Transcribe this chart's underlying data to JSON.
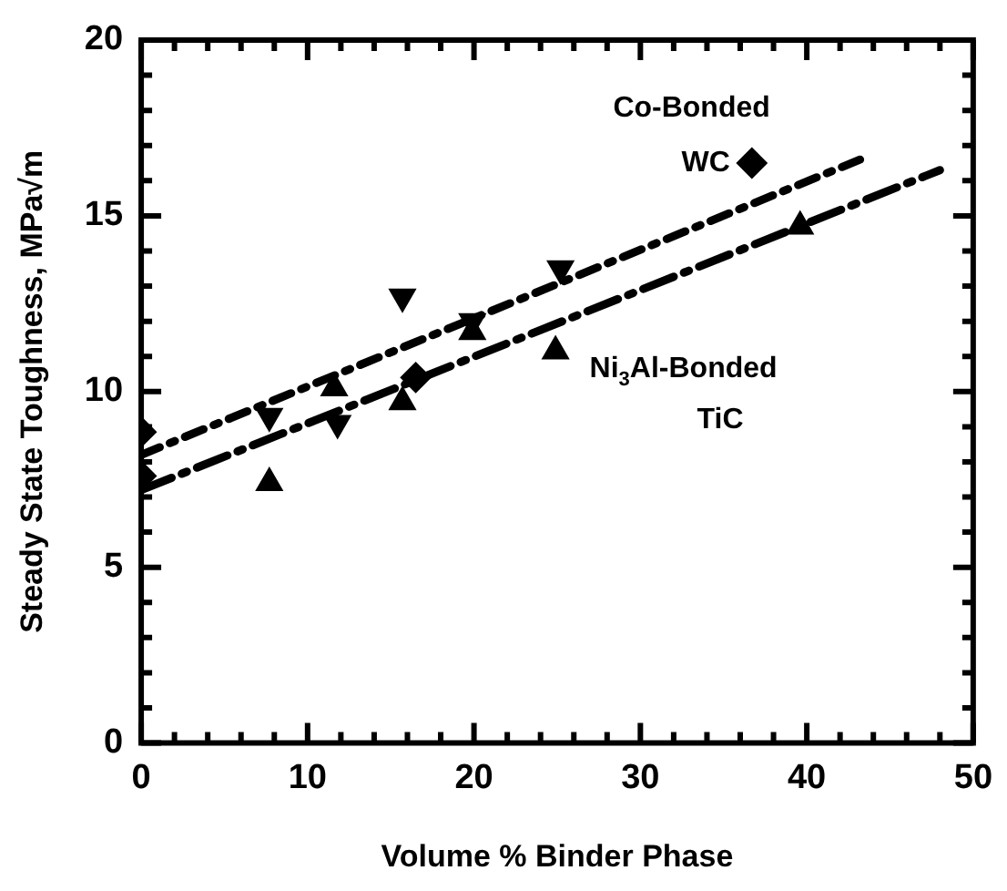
{
  "chart_data": {
    "type": "scatter",
    "xlabel": "Volume % Binder Phase",
    "ylabel": "Steady State Toughness, MPa√m",
    "xlim": [
      0,
      50
    ],
    "ylim": [
      0,
      20
    ],
    "xticks": [
      0,
      {
        "value": 2,
        "label": null
      },
      {
        "value": 4,
        "label": null
      },
      {
        "value": 6,
        "label": null
      },
      {
        "value": 8,
        "label": null
      },
      10,
      {
        "value": 12,
        "label": null
      },
      {
        "value": 14,
        "label": null
      },
      {
        "value": 16,
        "label": null
      },
      {
        "value": 18,
        "label": null
      },
      20,
      {
        "value": 22,
        "label": null
      },
      {
        "value": 24,
        "label": null
      },
      {
        "value": 26,
        "label": null
      },
      {
        "value": 28,
        "label": null
      },
      30,
      {
        "value": 32,
        "label": null
      },
      {
        "value": 34,
        "label": null
      },
      {
        "value": 36,
        "label": null
      },
      {
        "value": 38,
        "label": null
      },
      40,
      {
        "value": 42,
        "label": null
      },
      {
        "value": 44,
        "label": null
      },
      {
        "value": 46,
        "label": null
      },
      {
        "value": 48,
        "label": null
      },
      50
    ],
    "yticks": [
      0,
      {
        "value": 1,
        "label": null
      },
      {
        "value": 2,
        "label": null
      },
      {
        "value": 3,
        "label": null
      },
      {
        "value": 4,
        "label": null
      },
      5,
      {
        "value": 6,
        "label": null
      },
      {
        "value": 7,
        "label": null
      },
      {
        "value": 8,
        "label": null
      },
      {
        "value": 9,
        "label": null
      },
      10,
      {
        "value": 11,
        "label": null
      },
      {
        "value": 12,
        "label": null
      },
      {
        "value": 13,
        "label": null
      },
      {
        "value": 14,
        "label": null
      },
      15,
      {
        "value": 16,
        "label": null
      },
      {
        "value": 17,
        "label": null
      },
      {
        "value": 18,
        "label": null
      },
      {
        "value": 19,
        "label": null
      },
      20
    ],
    "grid": false,
    "legend": false,
    "series": [
      {
        "type": "scatter",
        "marker": "diamond",
        "color": "#000000",
        "x": [
          0,
          0,
          16.5,
          36.7
        ],
        "values": [
          8.85,
          7.6,
          10.4,
          16.5
        ]
      },
      {
        "type": "scatter",
        "marker": "triangle-down",
        "color": "#000000",
        "x": [
          7.7,
          11.8,
          15.7,
          19.9,
          25.2
        ],
        "values": [
          9.3,
          9.1,
          12.7,
          12.0,
          13.5
        ]
      },
      {
        "type": "scatter",
        "marker": "triangle",
        "color": "#000000",
        "x": [
          7.7,
          11.6,
          15.7,
          19.9,
          24.9,
          39.6
        ],
        "values": [
          7.4,
          10.1,
          9.7,
          11.7,
          11.15,
          14.7
        ]
      },
      {
        "type": "line",
        "line_style": "dotted",
        "color": "#000000",
        "x": [
          0,
          43.2
        ],
        "values": [
          8.2,
          16.6
        ]
      },
      {
        "type": "line",
        "line_style": "dashed",
        "color": "#000000",
        "x": [
          0,
          48
        ],
        "values": [
          7.2,
          16.3
        ]
      }
    ],
    "annotations": [
      {
        "text": "Co-Bonded WC",
        "x": 36.7,
        "y": 16.5
      },
      {
        "text": "Ni$_{3}$Al-Bonded TiC",
        "x": 25.2,
        "y": 11.15
      }
    ]
  }
}
